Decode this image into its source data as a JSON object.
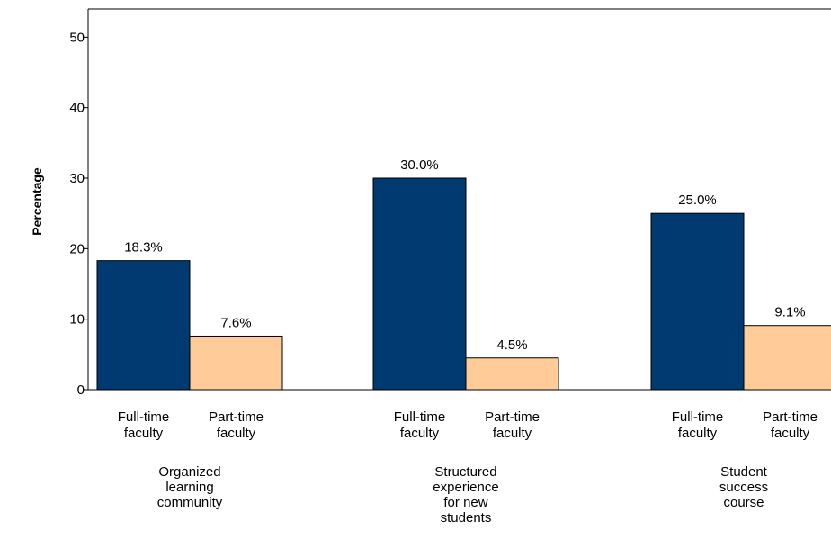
{
  "chart_data": {
    "type": "bar",
    "ylabel": "Percentage",
    "ylim": [
      0,
      54
    ],
    "yticks": [
      0,
      10,
      20,
      30,
      40,
      50
    ],
    "grid": false,
    "groups": [
      {
        "label": [
          "Organized",
          "learning",
          "community"
        ],
        "bars": [
          {
            "category": [
              "Full-time",
              "faculty"
            ],
            "value": 18.3,
            "data_label": "18.3%"
          },
          {
            "category": [
              "Part-time",
              "faculty"
            ],
            "value": 7.6,
            "data_label": "7.6%"
          }
        ]
      },
      {
        "label": [
          "Structured",
          "experience",
          "for new",
          "students"
        ],
        "bars": [
          {
            "category": [
              "Full-time",
              "faculty"
            ],
            "value": 30.0,
            "data_label": "30.0%"
          },
          {
            "category": [
              "Part-time",
              "faculty"
            ],
            "value": 4.5,
            "data_label": "4.5%"
          }
        ]
      },
      {
        "label": [
          "Student",
          "success",
          "course"
        ],
        "bars": [
          {
            "category": [
              "Full-time",
              "faculty"
            ],
            "value": 25.0,
            "data_label": "25.0%"
          },
          {
            "category": [
              "Part-time",
              "faculty"
            ],
            "value": 9.1,
            "data_label": "9.1%"
          }
        ]
      }
    ],
    "colors": {
      "full_time": "#003a70",
      "part_time": "#ffcc99",
      "outline": "#000000"
    }
  }
}
